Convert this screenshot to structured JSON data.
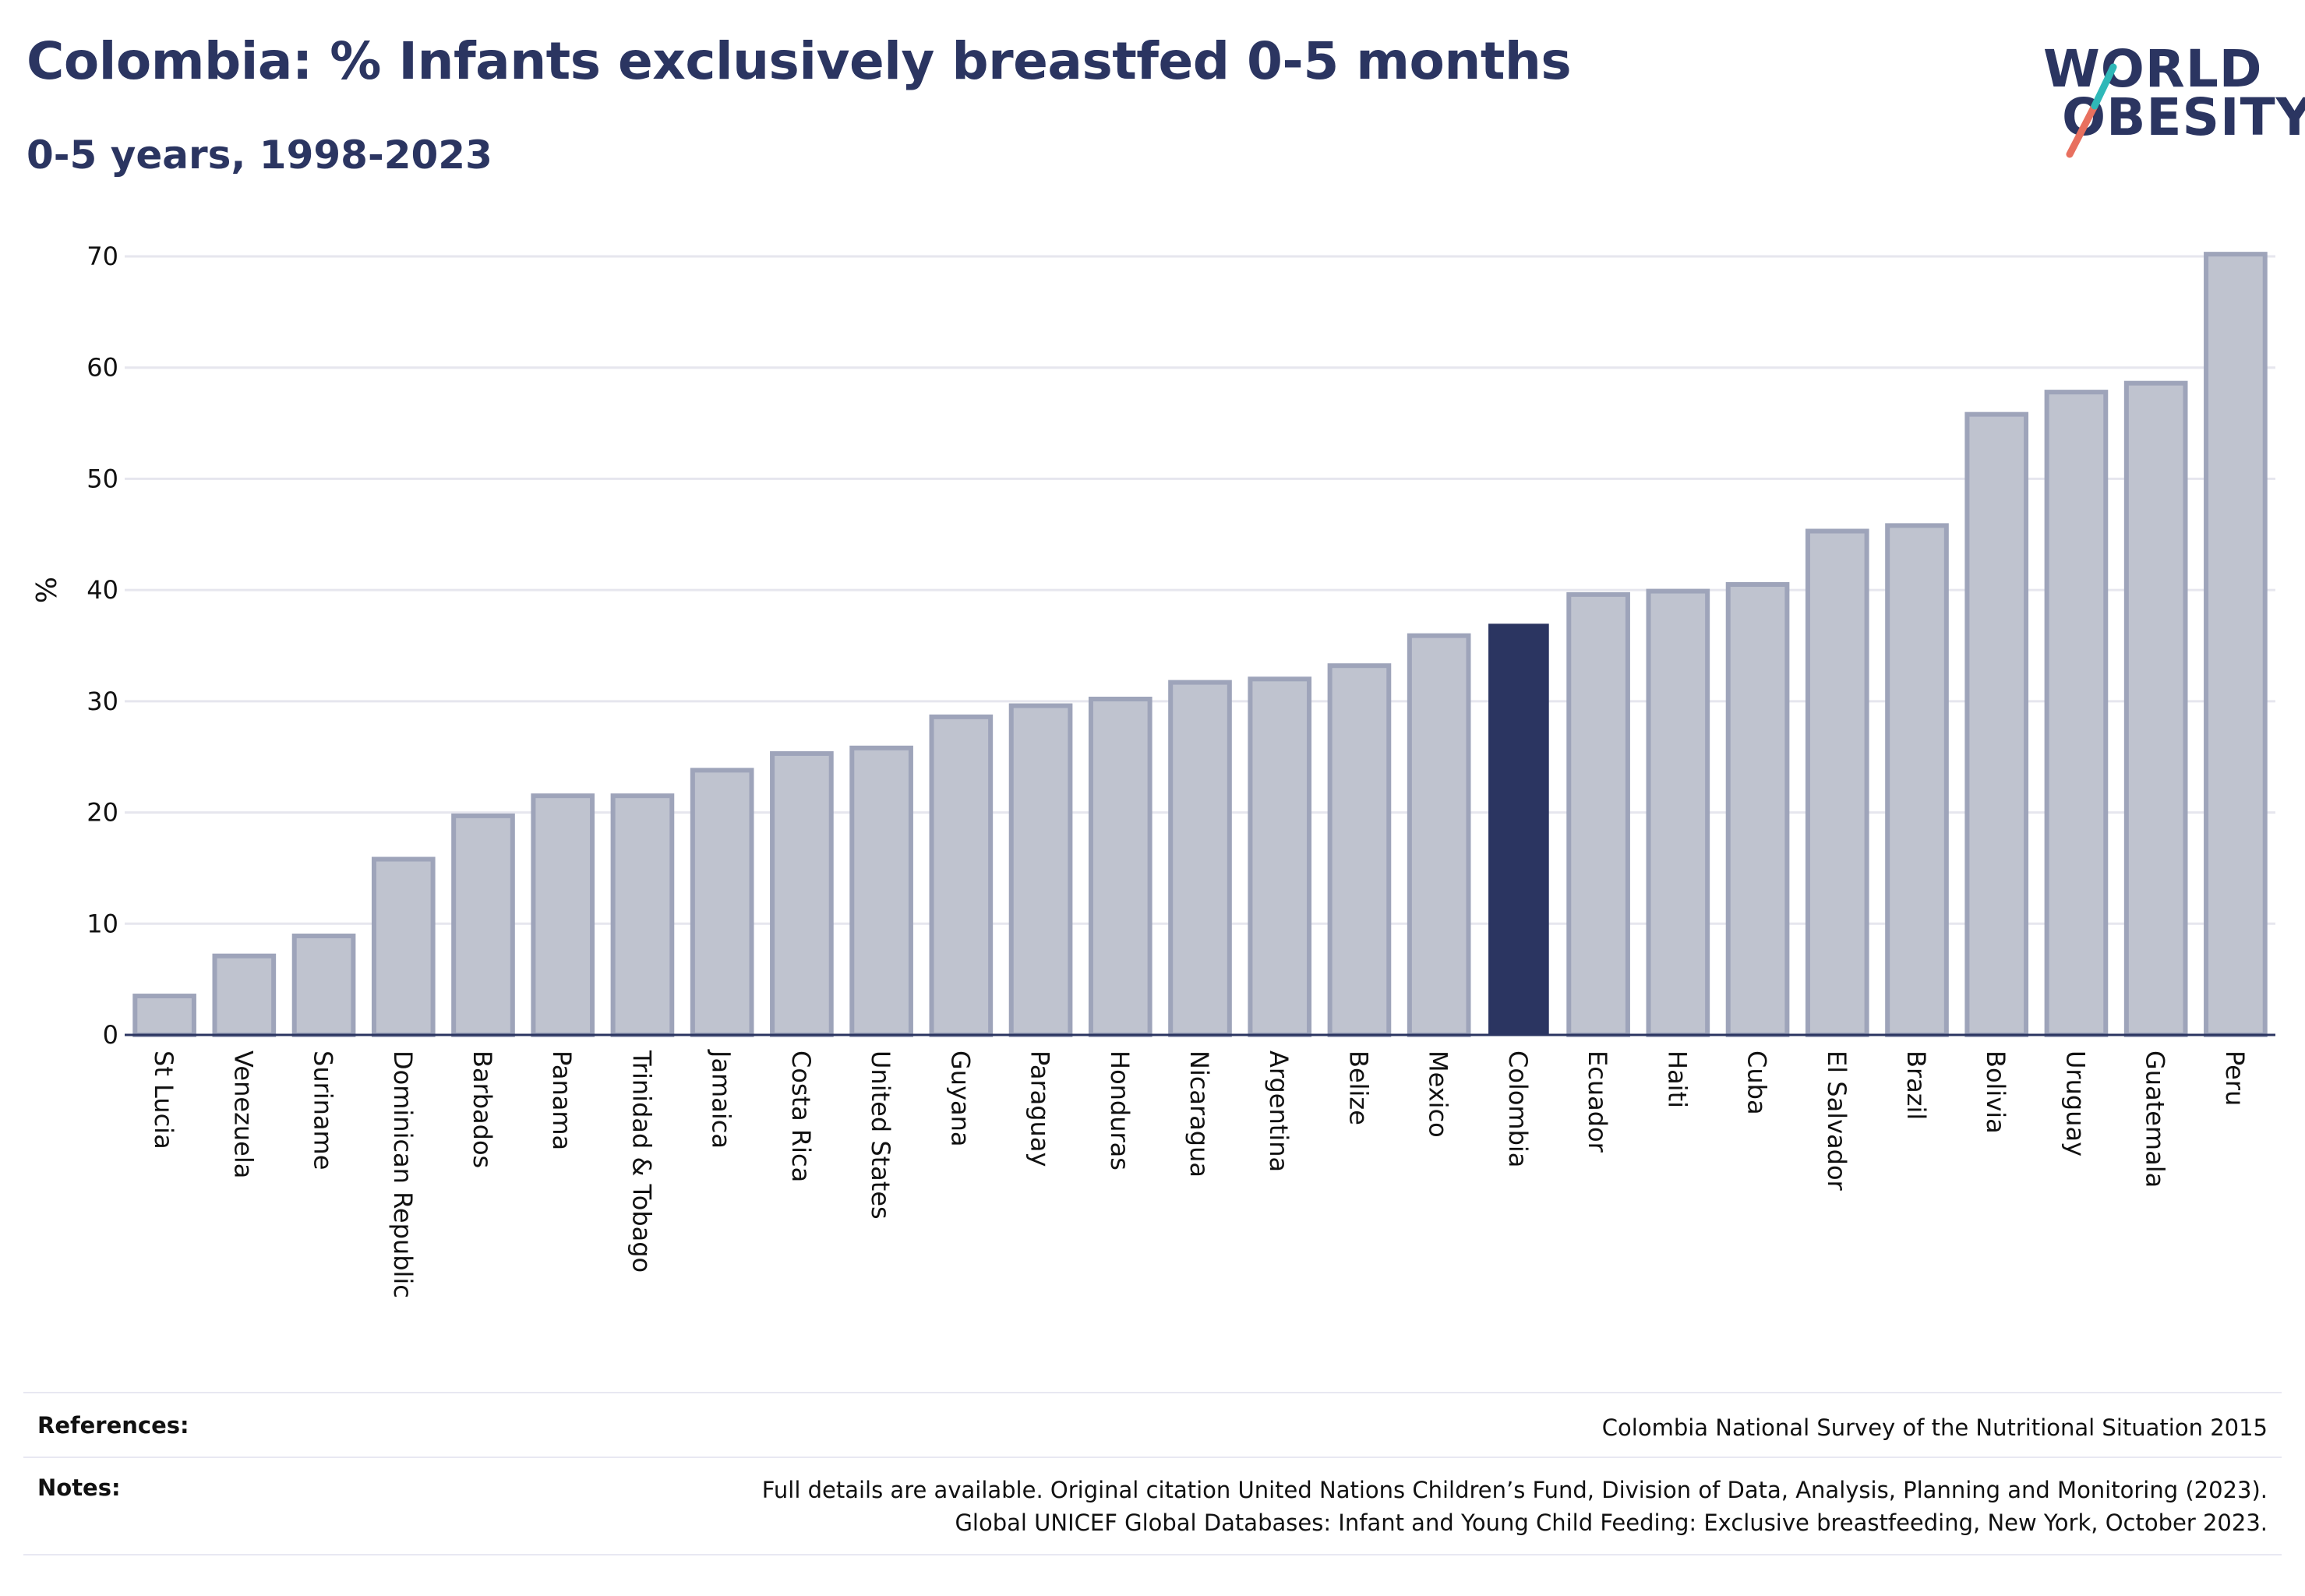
{
  "header": {
    "title": "Colombia: % Infants exclusively breastfed 0-5 months",
    "subtitle": "0-5 years, 1998-2023"
  },
  "logo": {
    "line1": "WORLD",
    "line2": "OBESITY"
  },
  "colors": {
    "highlight": "#2b3561",
    "bar_fill": "#bfc3cf",
    "bar_stroke": "#9ea4ba",
    "grid": "#e6e6ee",
    "text": "#111111",
    "logo_teal": "#2fb8b8",
    "logo_coral": "#e8705f"
  },
  "chart_data": {
    "type": "bar",
    "title": "Colombia: % Infants exclusively breastfed 0-5 months",
    "subtitle": "0-5 years, 1998-2023",
    "xlabel": "",
    "ylabel": "%",
    "ylim": [
      0,
      70
    ],
    "yticks": [
      0,
      10,
      20,
      30,
      40,
      50,
      60,
      70
    ],
    "grid": true,
    "highlight": "Colombia",
    "categories": [
      "St Lucia",
      "Venezuela",
      "Suriname",
      "Dominican Republic",
      "Barbados",
      "Panama",
      "Trinidad & Tobago",
      "Jamaica",
      "Costa Rica",
      "United States",
      "Guyana",
      "Paraguay",
      "Honduras",
      "Nicaragua",
      "Argentina",
      "Belize",
      "Mexico",
      "Colombia",
      "Ecuador",
      "Haiti",
      "Cuba",
      "El Salvador",
      "Brazil",
      "Bolivia",
      "Uruguay",
      "Guatemala",
      "Peru"
    ],
    "values": [
      3.5,
      7.1,
      8.9,
      15.8,
      19.7,
      21.5,
      21.5,
      23.8,
      25.3,
      25.8,
      28.6,
      29.6,
      30.2,
      31.7,
      32.0,
      33.2,
      35.9,
      36.9,
      39.6,
      39.9,
      40.5,
      45.3,
      45.8,
      55.8,
      57.8,
      58.6,
      70.2
    ]
  },
  "footer": {
    "references_label": "References:",
    "references_text": "Colombia National Survey of the Nutritional Situation 2015",
    "notes_label": "Notes:",
    "notes_line1": "Full details are available. Original citation United Nations Children’s Fund, Division of Data, Analysis, Planning and Monitoring (2023).",
    "notes_line2": "Global UNICEF Global Databases: Infant and Young Child Feeding: Exclusive breastfeeding, New York, October 2023."
  }
}
